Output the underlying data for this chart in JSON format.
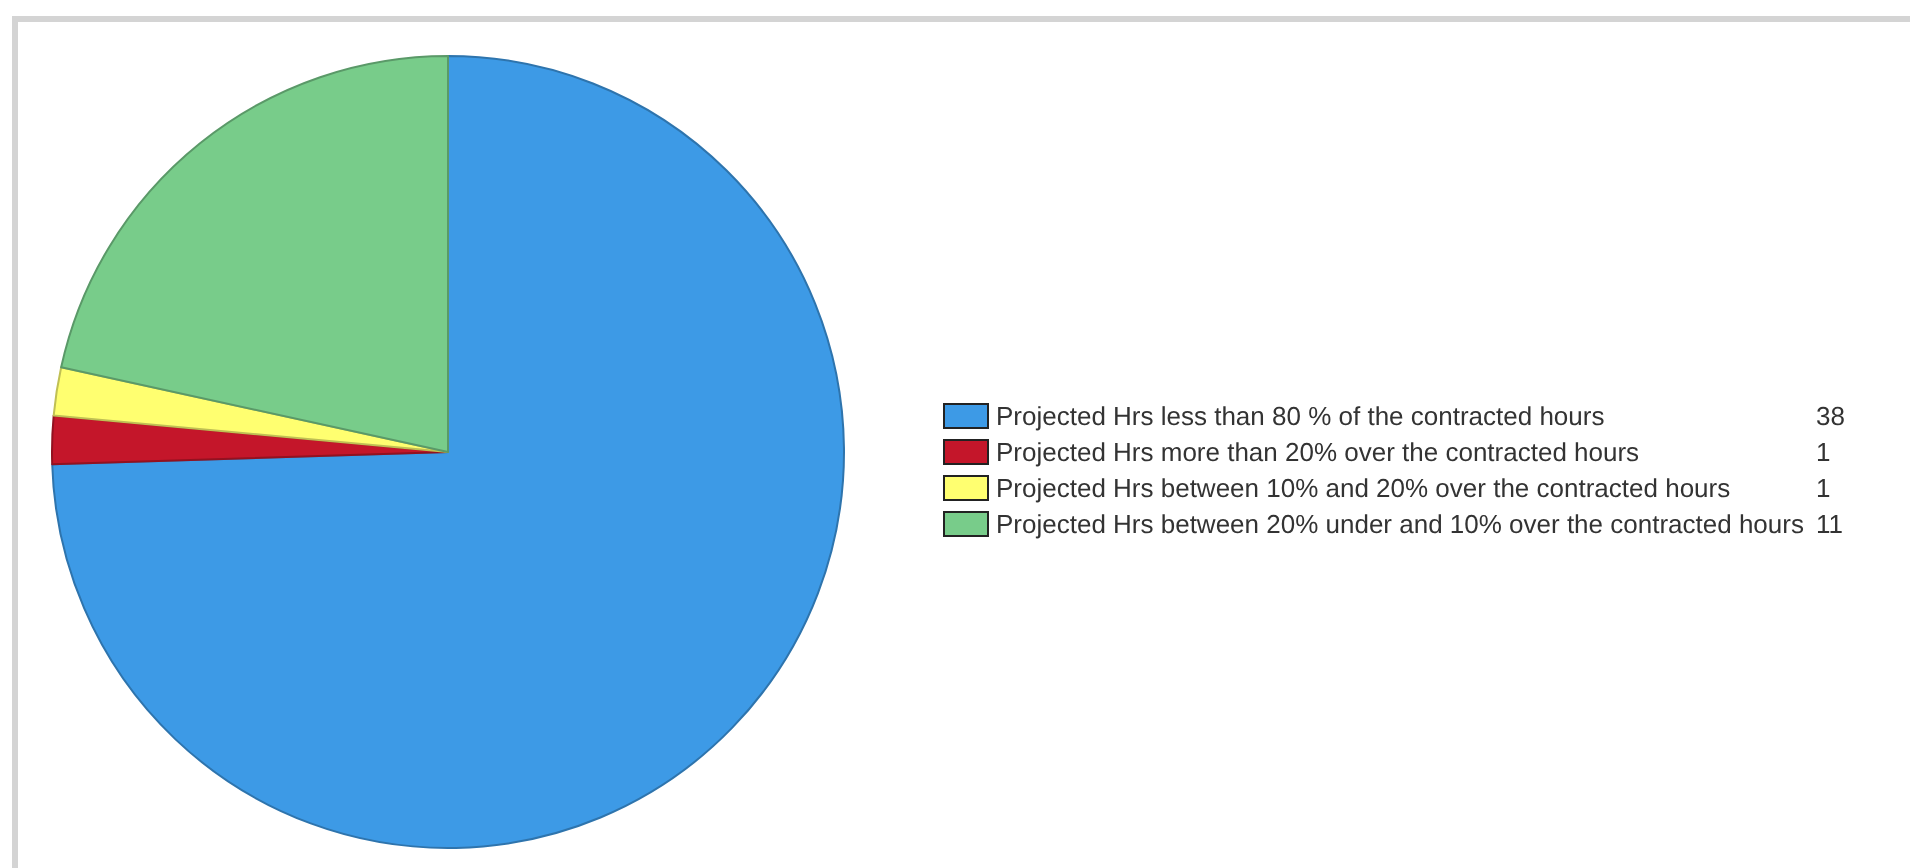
{
  "chart_data": {
    "type": "pie",
    "categories": [
      "Projected Hrs less than 80 % of the contracted hours",
      "Projected Hrs more than 20% over the contracted hours",
      "Projected Hrs between 10% and 20% over the contracted hours",
      "Projected Hrs between 20% under and 10% over the contracted hours"
    ],
    "values": [
      38,
      1,
      1,
      11
    ],
    "colors": [
      "#3d9ae6",
      "#c4162a",
      "#ffff70",
      "#78cc8a"
    ],
    "legend": "right",
    "data_labels": true
  }
}
